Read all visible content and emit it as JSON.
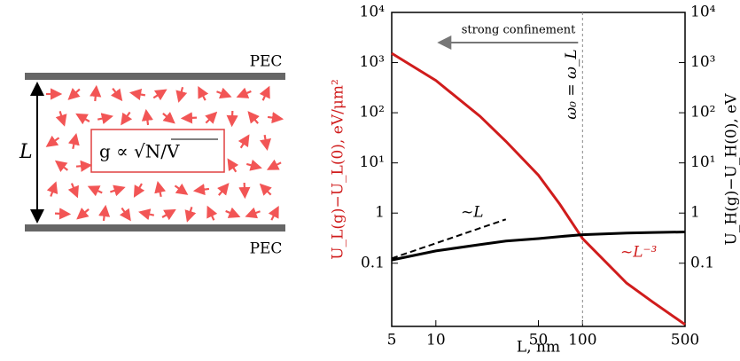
{
  "diagram": {
    "top_plate": "PEC",
    "bottom_plate": "PEC",
    "gap": "L",
    "formula": "g ∝ √N/V"
  },
  "chart_data": {
    "type": "line",
    "x_label": "L, nm",
    "y_label": "U_L(g)−U_L(0), eV/μm²",
    "y2_label": "U_H(g)−U_H(0), eV",
    "xscale": "log",
    "yscale": "log",
    "x": [
      5,
      10,
      20,
      30,
      50,
      70,
      100,
      200,
      300,
      500
    ],
    "series": [
      {
        "color": "#d01c1c",
        "values": [
          1530,
          440,
          85,
          27,
          5.7,
          1.5,
          0.31,
          0.04,
          0.017,
          0.006
        ]
      },
      {
        "color": "#000000",
        "values": [
          0.116,
          0.176,
          0.235,
          0.277,
          0.31,
          0.34,
          0.37,
          0.4,
          0.41,
          0.42
        ],
        "axis": "y2"
      },
      {
        "color": "#000000",
        "dashed": true,
        "values": [
          0.125,
          0.25,
          0.5,
          0.75,
          null,
          null,
          null,
          null,
          null,
          null
        ]
      }
    ],
    "xlim": [
      5,
      500
    ],
    "xticks": [
      5,
      10,
      50,
      100,
      500
    ],
    "ylim": [
      0.0055,
      10000
    ],
    "yticks": [
      {
        "value": 10000,
        "label": "10⁴"
      },
      {
        "value": 1000,
        "label": "10³"
      },
      {
        "value": 100,
        "label": "10²"
      },
      {
        "value": 10,
        "label": "10¹"
      },
      1,
      0.1
    ],
    "y2lim": [
      0.0055,
      10000
    ],
    "y2ticks": [
      {
        "value": 10000,
        "label": "10⁴"
      },
      {
        "value": 1000,
        "label": "10³"
      },
      {
        "value": 100,
        "label": "10²"
      },
      {
        "value": 10,
        "label": "10¹"
      },
      1,
      0.1
    ],
    "vline": {
      "x": 100,
      "label": "ω₀ = ω_L"
    },
    "arrow": {
      "label": "strong confinement"
    },
    "annotations": [
      "~L",
      "~L⁻³"
    ]
  }
}
